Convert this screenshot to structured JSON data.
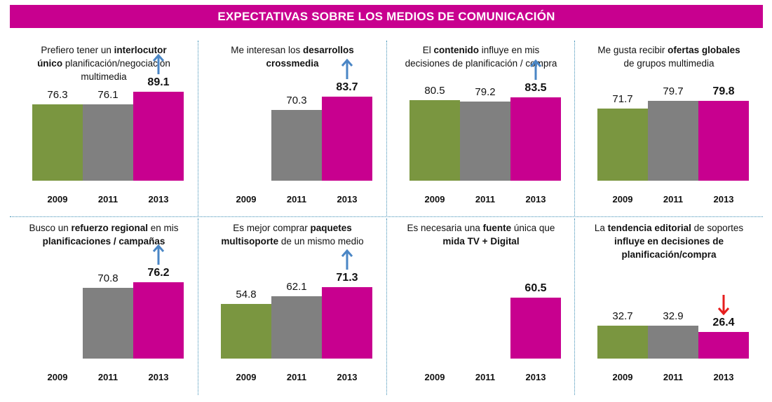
{
  "title": "EXPECTATIVAS SOBRE LOS MEDIOS DE COMUNICACIÓN",
  "colors": {
    "2009": "#7a9640",
    "2011": "#808080",
    "2013": "#c8008f",
    "up": "#4a86c5",
    "down": "#e61e1e",
    "banner": "#c8008f"
  },
  "chart_data": [
    {
      "type": "bar",
      "title": "Prefiero tener un interlocutor único planificación/negociación multimedia",
      "caption": [
        [
          "Prefiero tener un ",
          false
        ],
        [
          "interlocutor",
          true
        ],
        [
          "\n",
          false
        ],
        [
          "único",
          true
        ],
        [
          " planificación/negociación",
          false
        ],
        [
          "\n",
          false
        ],
        [
          "multimedia",
          false
        ]
      ],
      "categories": [
        "2009",
        "2011",
        "2013"
      ],
      "values": [
        76.3,
        76.1,
        89.1
      ],
      "labels": [
        "76.3",
        "76.1",
        "89.1"
      ],
      "trend": "up",
      "ylim": [
        0,
        100
      ]
    },
    {
      "type": "bar",
      "title": "Me interesan los desarrollos crossmedia",
      "caption": [
        [
          "Me interesan los ",
          false
        ],
        [
          "desarrollos",
          true
        ],
        [
          "\n",
          false
        ],
        [
          "crossmedia",
          true
        ]
      ],
      "categories": [
        "2009",
        "2011",
        "2013"
      ],
      "values": [
        null,
        70.3,
        83.7
      ],
      "labels": [
        "",
        "70.3",
        "83.7"
      ],
      "trend": "up",
      "ylim": [
        0,
        100
      ]
    },
    {
      "type": "bar",
      "title": "El contenido influye en mis decisiones de planificación / compra",
      "caption": [
        [
          "El ",
          false
        ],
        [
          "contenido",
          true
        ],
        [
          " influye en mis",
          false
        ],
        [
          "\n",
          false
        ],
        [
          "decisiones de planificación / compra",
          false
        ]
      ],
      "categories": [
        "2009",
        "2011",
        "2013"
      ],
      "values": [
        80.5,
        79.2,
        83.5
      ],
      "labels": [
        "80.5",
        "79.2",
        "83.5"
      ],
      "trend": "up",
      "ylim": [
        0,
        100
      ]
    },
    {
      "type": "bar",
      "title": "Me gusta recibir ofertas globales de grupos multimedia",
      "caption": [
        [
          "Me gusta recibir ",
          false
        ],
        [
          "ofertas globales",
          true
        ],
        [
          "\n",
          false
        ],
        [
          "de grupos multimedia",
          false
        ]
      ],
      "categories": [
        "2009",
        "2011",
        "2013"
      ],
      "values": [
        71.7,
        79.7,
        79.8
      ],
      "labels": [
        "71.7",
        "79.7",
        "79.8"
      ],
      "trend": null,
      "ylim": [
        0,
        100
      ]
    },
    {
      "type": "bar",
      "title": "Busco un refuerzo regional en mis planificaciones / campañas",
      "caption": [
        [
          "Busco un ",
          false
        ],
        [
          "refuerzo regional",
          true
        ],
        [
          " en mis",
          false
        ],
        [
          "\n",
          false
        ],
        [
          "planificaciones / campañas",
          true
        ]
      ],
      "categories": [
        "2009",
        "2011",
        "2013"
      ],
      "values": [
        null,
        70.8,
        76.2
      ],
      "labels": [
        "",
        "70.8",
        "76.2"
      ],
      "trend": "up",
      "ylim": [
        0,
        100
      ]
    },
    {
      "type": "bar",
      "title": "Es mejor comprar paquetes multisoporte de un mismo medio",
      "caption": [
        [
          "Es mejor comprar ",
          false
        ],
        [
          "paquetes",
          true
        ],
        [
          "\n",
          false
        ],
        [
          "multisoporte",
          true
        ],
        [
          " de un mismo medio",
          false
        ]
      ],
      "categories": [
        "2009",
        "2011",
        "2013"
      ],
      "values": [
        54.8,
        62.1,
        71.3
      ],
      "labels": [
        "54.8",
        "62.1",
        "71.3"
      ],
      "trend": "up",
      "ylim": [
        0,
        100
      ]
    },
    {
      "type": "bar",
      "title": "Es necesaria una fuente única que mida TV + Digital",
      "caption": [
        [
          "Es necesaria una ",
          false
        ],
        [
          "fuente",
          true
        ],
        [
          " única que",
          false
        ],
        [
          "\n",
          false
        ],
        [
          "mida TV + Digital",
          true
        ]
      ],
      "categories": [
        "2009",
        "2011",
        "2013"
      ],
      "values": [
        null,
        null,
        60.5
      ],
      "labels": [
        "",
        "",
        "60.5"
      ],
      "trend": null,
      "ylim": [
        0,
        100
      ]
    },
    {
      "type": "bar",
      "title": "La tendencia editorial de soportes influye en decisiones de planificación/compra",
      "caption": [
        [
          "La ",
          false
        ],
        [
          "tendencia editorial",
          true
        ],
        [
          " de soportes",
          false
        ],
        [
          "\n",
          false
        ],
        [
          "influye en decisiones de",
          true
        ],
        [
          "\n",
          false
        ],
        [
          "planificación/compra",
          true
        ]
      ],
      "categories": [
        "2009",
        "2011",
        "2013"
      ],
      "values": [
        32.7,
        32.9,
        26.4
      ],
      "labels": [
        "32.7",
        "32.9",
        "26.4"
      ],
      "trend": "down",
      "ylim": [
        0,
        100
      ]
    }
  ]
}
